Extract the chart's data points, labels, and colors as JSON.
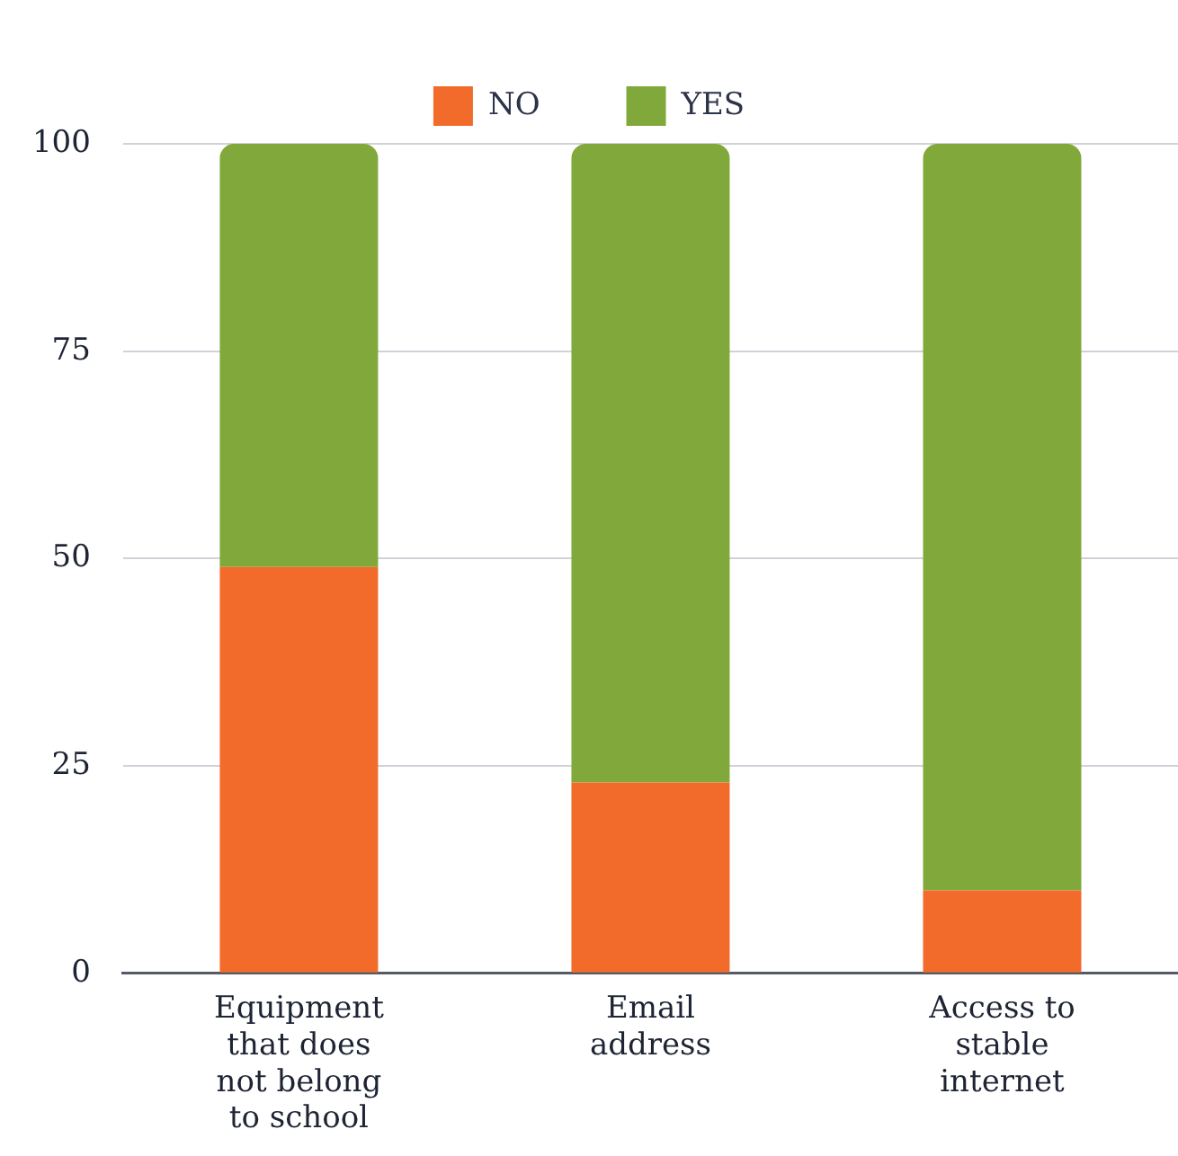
{
  "chart_data": {
    "type": "bar",
    "stacked": true,
    "categories": [
      "Equipment that does not belong to school",
      "Email address",
      "Access to stable internet"
    ],
    "series": [
      {
        "name": "NO",
        "color": "#f26b2a",
        "values": [
          49,
          23,
          10
        ]
      },
      {
        "name": "YES",
        "color": "#80a83a",
        "values": [
          51,
          77,
          90
        ]
      }
    ],
    "ylim": [
      0,
      100
    ],
    "yticks": [
      0,
      25,
      50,
      75,
      100
    ],
    "grid": "y",
    "legend": "top"
  }
}
